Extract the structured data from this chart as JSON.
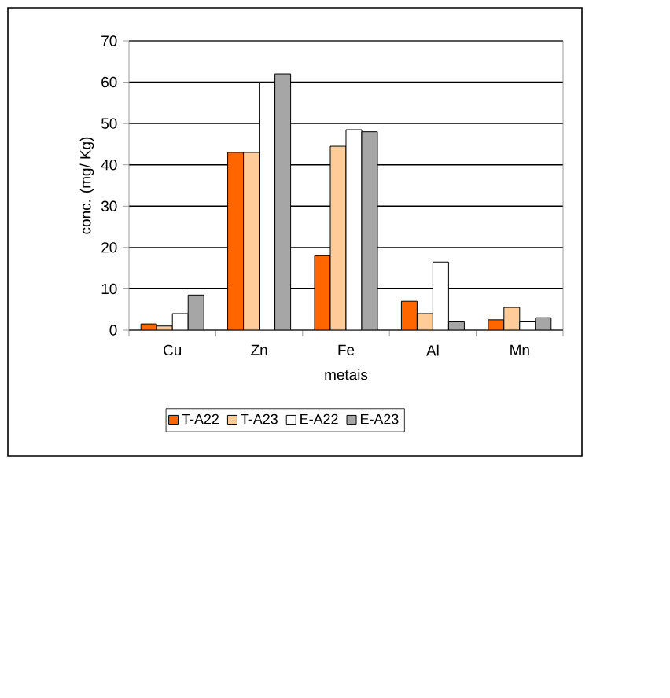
{
  "chart_data": {
    "type": "bar",
    "xlabel": "metais",
    "ylabel": "conc. (mg/ Kg)",
    "categories": [
      "Cu",
      "Zn",
      "Fe",
      "Al",
      "Mn"
    ],
    "series": [
      {
        "name": "T-A22",
        "color": "#ff6600",
        "values": [
          1.5,
          43,
          18,
          7,
          2.5
        ]
      },
      {
        "name": "T-A23",
        "color": "#ffcc99",
        "values": [
          1,
          43,
          44.5,
          4,
          5.5
        ]
      },
      {
        "name": "E-A22",
        "color": "#ffffff",
        "values": [
          4,
          60,
          48.5,
          16.5,
          2
        ]
      },
      {
        "name": "E-A23",
        "color": "#a6a6a6",
        "values": [
          8.5,
          62,
          48,
          2,
          3
        ]
      }
    ],
    "ylim": [
      0,
      70
    ],
    "yticks": [
      0,
      10,
      20,
      30,
      40,
      50,
      60,
      70
    ],
    "grid": "y",
    "legend": "bottom"
  }
}
